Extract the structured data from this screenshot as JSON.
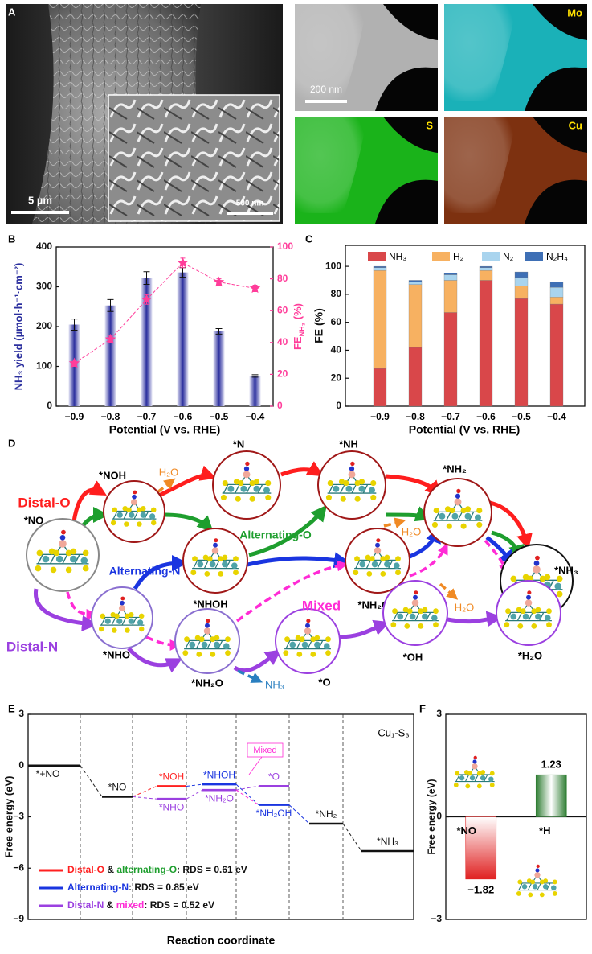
{
  "panel_a": {
    "label": "A",
    "scale_main": "5 µm",
    "scale_inset": "500 nm",
    "scale_map": "200 nm",
    "maps": [
      "Mo",
      "S",
      "Cu"
    ]
  },
  "chart_data": [
    {
      "label": "B",
      "type": "bar",
      "categories": [
        "−0.9",
        "−0.8",
        "−0.7",
        "−0.6",
        "−0.5",
        "−0.4"
      ],
      "xlabel": "Potential (V vs. RHE)",
      "ylabel": "NH₃ yield (µmol·h⁻¹·cm⁻²)",
      "y2label": [
        "FE",
        "NH₃",
        "(%)"
      ],
      "ylim": [
        0,
        400
      ],
      "yticks": [
        0,
        100,
        200,
        300,
        400
      ],
      "y2lim": [
        0,
        100
      ],
      "y2ticks": [
        0,
        20,
        40,
        60,
        80,
        100
      ],
      "series": [
        {
          "color": "#2b2f9e",
          "values": [
            205,
            253,
            322,
            336,
            188,
            76
          ],
          "errors": [
            14,
            15,
            16,
            12,
            7,
            3
          ]
        },
        {
          "color": "#ff3d9a",
          "axis": "y2",
          "values": [
            27,
            42,
            67,
            90,
            78,
            74
          ],
          "errors": [
            2,
            2,
            3,
            3,
            2,
            2
          ]
        }
      ]
    },
    {
      "label": "C",
      "type": "stacked_bar",
      "categories": [
        "−0.9",
        "−0.8",
        "−0.7",
        "−0.6",
        "−0.5",
        "−0.4"
      ],
      "xlabel": "Potential (V vs. RHE)",
      "ylabel": "FE (%)",
      "legend": "top",
      "ylim": [
        0,
        115
      ],
      "yticks": [
        0,
        20,
        40,
        60,
        80,
        100
      ],
      "series": [
        {
          "name": "NH₃",
          "color": "#d9474a",
          "values": [
            27,
            42,
            67,
            90,
            77,
            73
          ]
        },
        {
          "name": "H₂",
          "color": "#f7b161",
          "values": [
            70,
            45,
            23,
            7,
            9,
            5
          ]
        },
        {
          "name": "N₂",
          "color": "#a9d4ee",
          "values": [
            2,
            2,
            4,
            2,
            6,
            7
          ]
        },
        {
          "name": "N₂H₄",
          "color": "#3e6fb5",
          "values": [
            1,
            1,
            1,
            1,
            4,
            4
          ]
        }
      ]
    },
    {
      "label": "E",
      "type": "energy_levels",
      "ylabel": "Free energy (eV)",
      "xlabel": "Reaction coordinate",
      "annotation": "Cu₁-S₃",
      "mixed_label": "Mixed",
      "ylim": [
        -9,
        3
      ],
      "yticks": [
        {
          "value": -9,
          "label": "−9"
        },
        {
          "value": -6,
          "label": "−6"
        },
        {
          "value": -3,
          "label": "−3"
        },
        0,
        3
      ],
      "levels": [
        {
          "label": "*+NO",
          "step": 0,
          "value": 0,
          "color": "#111111"
        },
        {
          "label": "*NO",
          "step": 1,
          "value": -1.82,
          "color": "#111111"
        },
        {
          "label": "*NOH",
          "step": 2,
          "value": -1.21,
          "color": "#ff2020"
        },
        {
          "label": "*NHO",
          "step": 2,
          "value": -1.95,
          "color": "#9b40e0"
        },
        {
          "label": "*NHOH",
          "step": 3,
          "value": -1.1,
          "color": "#1a35e0"
        },
        {
          "label": "*NH₂O",
          "step": 3,
          "value": -1.43,
          "color": "#9b40e0"
        },
        {
          "label": "*NH₂OH",
          "step": 4,
          "value": -2.3,
          "color": "#1a35e0"
        },
        {
          "label": "*O",
          "step": 4,
          "value": -1.2,
          "color": "#9b40e0"
        },
        {
          "label": "*NH₂",
          "step": 5,
          "value": -3.4,
          "color": "#111111"
        },
        {
          "label": "*NH₃",
          "step": 6,
          "value": -5.0,
          "color": "#111111"
        }
      ],
      "legend": [
        {
          "color": "#ff2020",
          "parts": [
            "Distal-O",
            " & ",
            "alternating-O",
            ": RDS = 0.61 eV"
          ],
          "colors": [
            "#ff2020",
            "#111111",
            "#1e9e2e",
            "#111111"
          ]
        },
        {
          "color": "#1a35e0",
          "parts": [
            "Alternating-N",
            ": RDS = 0.85 eV"
          ],
          "colors": [
            "#1a35e0",
            "#111111"
          ]
        },
        {
          "color": "#9b40e0",
          "parts": [
            "Distal-N",
            " & ",
            "mixed",
            ": RDS = 0.52 eV"
          ],
          "colors": [
            "#9b40e0",
            "#111111",
            "#ff2bd6",
            "#111111"
          ]
        }
      ]
    },
    {
      "label": "F",
      "type": "bar",
      "categories": [
        "*NO",
        "*H"
      ],
      "values": [
        -1.82,
        1.23
      ],
      "value_labels": [
        "−1.82",
        "1.23"
      ],
      "colors": [
        "#e02020",
        "#2e7d32"
      ],
      "ylabel": "Free energy (eV)",
      "ylim": [
        -3,
        3
      ],
      "yticks": [
        {
          "value": -3,
          "label": "−3"
        },
        0,
        3
      ]
    }
  ],
  "diagram_d": {
    "label": "D",
    "nodes": [
      "*NO",
      "*NOH",
      "*N",
      "*NH",
      "*NH₂",
      "*NH₃",
      "*NHOH",
      "*NH₂OH",
      "*NHO",
      "*NH₂O",
      "*O",
      "*OH",
      "*H₂O"
    ],
    "pathways": [
      {
        "name": "Distal-O",
        "color": "#ff1e1e"
      },
      {
        "name": "Alternating-O",
        "color": "#1e9e2e"
      },
      {
        "name": "Alternating-N",
        "color": "#1a35e0"
      },
      {
        "name": "Mixed",
        "color": "#ff2bd6"
      },
      {
        "name": "Distal-N",
        "color": "#9b40e0"
      }
    ],
    "byproducts": [
      {
        "label": "H₂O",
        "color": "#f08a24"
      },
      {
        "label": "H₂O",
        "color": "#f08a24"
      },
      {
        "label": "H₂O",
        "color": "#f08a24"
      },
      {
        "label": "NH₃",
        "color": "#2a7fc0"
      }
    ]
  }
}
